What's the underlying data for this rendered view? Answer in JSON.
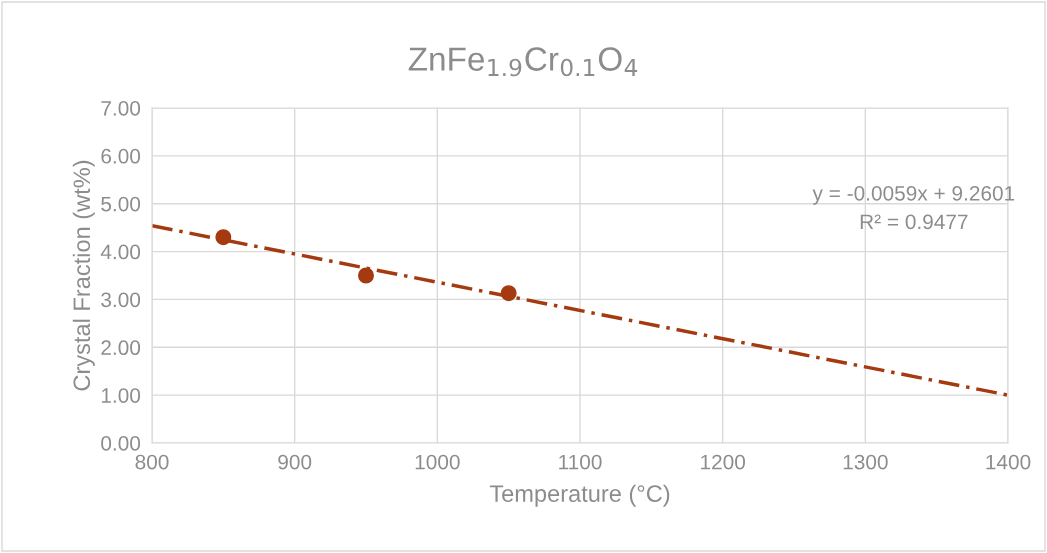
{
  "chart_data": {
    "type": "scatter",
    "title": "ZnFe$_{1.9}$Cr$_{0.1}$O$_{4}$",
    "xlabel": "Temperature (°C)",
    "ylabel": "Crystal Fraction (wt%)",
    "series": [
      {
        "color": "#a5390f",
        "x": [
          850,
          950,
          1050
        ],
        "values": [
          4.3,
          3.5,
          3.13
        ],
        "marker": "circle"
      },
      {
        "type": "line",
        "color": "#a5390f",
        "x": [
          800,
          1400
        ],
        "values": [
          4.54,
          1.0
        ],
        "line_style": "dashed"
      }
    ],
    "annotations": [
      "y = -0.0059x + 9.2601",
      "R² = 0.9477"
    ],
    "xlim": [
      800,
      1400
    ],
    "xticks": [
      800,
      900,
      1000,
      1100,
      1200,
      1300,
      1400
    ],
    "ylim": [
      0,
      7
    ],
    "yticks": [
      {
        "value": 0,
        "label": "0.00"
      },
      {
        "value": 1,
        "label": "1.00"
      },
      {
        "value": 2,
        "label": "2.00"
      },
      {
        "value": 3,
        "label": "3.00"
      },
      {
        "value": 4,
        "label": "4.00"
      },
      {
        "value": 5,
        "label": "5.00"
      },
      {
        "value": 6,
        "label": "6.00"
      },
      {
        "value": 7,
        "label": "7.00"
      }
    ],
    "grid": true
  }
}
